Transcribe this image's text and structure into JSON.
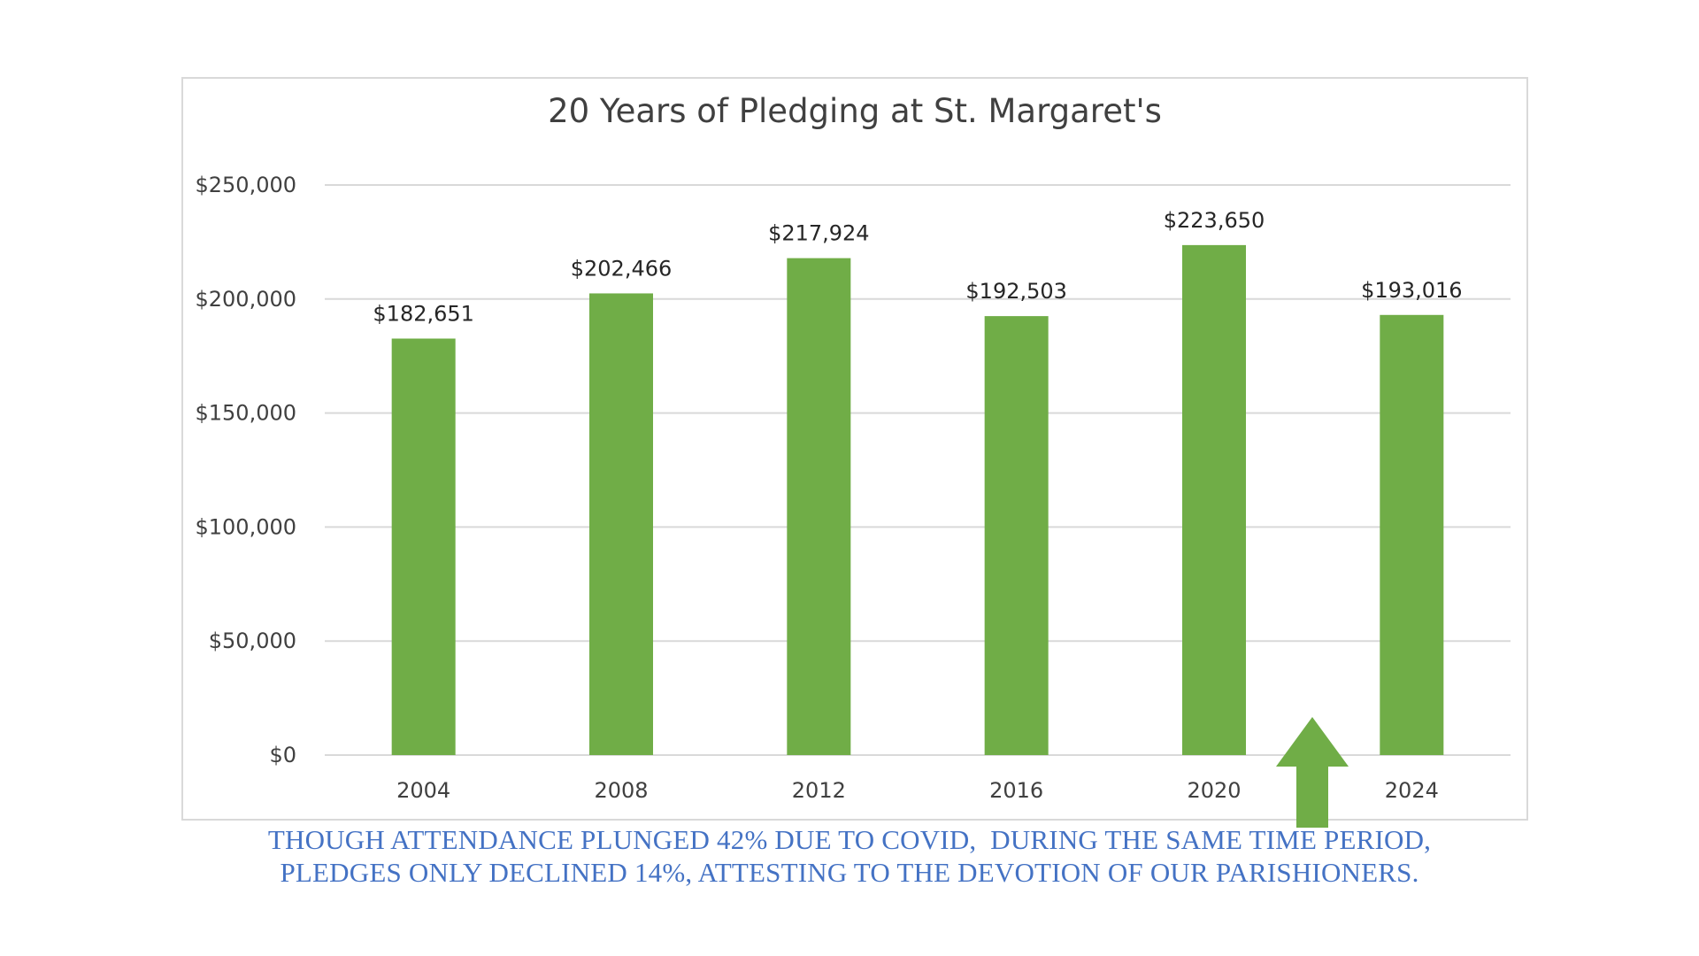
{
  "chart_data": {
    "type": "bar",
    "title": "20 Years of Pledging at St. Margaret's",
    "categories": [
      "2004",
      "2008",
      "2012",
      "2016",
      "2020",
      "2024"
    ],
    "values": [
      182651,
      202466,
      217924,
      192503,
      223650,
      193016
    ],
    "data_labels": [
      "$182,651",
      "$202,466",
      "$217,924",
      "$192,503",
      "$223,650",
      "$193,016"
    ],
    "ylim": [
      0,
      250000
    ],
    "yticks": [
      0,
      50000,
      100000,
      150000,
      200000,
      250000
    ],
    "ytick_labels": [
      "$0",
      "$50,000",
      "$100,000",
      "$150,000",
      "$200,000",
      "$250,000"
    ],
    "xlabel": "",
    "ylabel": "",
    "grid": true,
    "legend": false,
    "bar_color": "#70ad47",
    "annotation": {
      "type": "arrow-up",
      "points_to_category": "2024",
      "color": "#70ad47"
    }
  },
  "caption": {
    "line1": "THOUGH ATTENDANCE PLUNGED 42% DUE TO COVID,  DURING THE SAME TIME PERIOD,",
    "line2": "PLEDGES ONLY DECLINED 14%, ATTESTING TO THE DEVOTION OF OUR PARISHIONERS.",
    "color": "#4472c4"
  }
}
